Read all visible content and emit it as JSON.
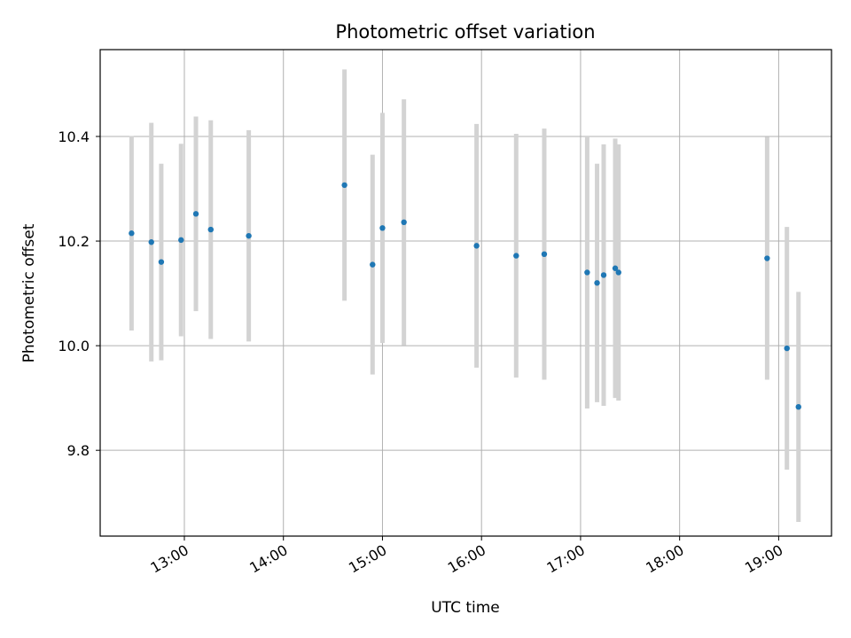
{
  "chart_data": {
    "type": "scatter",
    "title": "Photometric offset variation",
    "xlabel": "UTC time",
    "ylabel": "Photometric offset",
    "x_tick_labels": [
      "13:00",
      "14:00",
      "15:00",
      "16:00",
      "17:00",
      "18:00",
      "19:00"
    ],
    "y_tick_labels": [
      "9.8",
      "10.0",
      "10.2",
      "10.4"
    ],
    "grid": true,
    "series": [
      {
        "marker_color": "#1f77b4",
        "errorbar_color": "#d3d3d3",
        "points": [
          {
            "x": "12:28",
            "y": 10.215,
            "err": 0.186
          },
          {
            "x": "12:40",
            "y": 10.198,
            "err": 0.228
          },
          {
            "x": "12:46",
            "y": 10.16,
            "err": 0.188
          },
          {
            "x": "12:58",
            "y": 10.202,
            "err": 0.184
          },
          {
            "x": "13:07",
            "y": 10.252,
            "err": 0.186
          },
          {
            "x": "13:16",
            "y": 10.222,
            "err": 0.209
          },
          {
            "x": "13:39",
            "y": 10.21,
            "err": 0.202
          },
          {
            "x": "14:37",
            "y": 10.307,
            "err": 0.221
          },
          {
            "x": "14:54",
            "y": 10.155,
            "err": 0.21
          },
          {
            "x": "15:00",
            "y": 10.225,
            "err": 0.22
          },
          {
            "x": "15:13",
            "y": 10.236,
            "err": 0.235
          },
          {
            "x": "15:57",
            "y": 10.191,
            "err": 0.233
          },
          {
            "x": "16:21",
            "y": 10.172,
            "err": 0.233
          },
          {
            "x": "16:38",
            "y": 10.175,
            "err": 0.24
          },
          {
            "x": "17:04",
            "y": 10.14,
            "err": 0.26
          },
          {
            "x": "17:10",
            "y": 10.12,
            "err": 0.228
          },
          {
            "x": "17:14",
            "y": 10.135,
            "err": 0.25
          },
          {
            "x": "17:21",
            "y": 10.148,
            "err": 0.248
          },
          {
            "x": "17:23",
            "y": 10.14,
            "err": 0.245
          },
          {
            "x": "18:53",
            "y": 10.167,
            "err": 0.232
          },
          {
            "x": "19:05",
            "y": 9.995,
            "err": 0.232
          },
          {
            "x": "19:12",
            "y": 9.883,
            "err": 0.22
          }
        ]
      }
    ]
  }
}
